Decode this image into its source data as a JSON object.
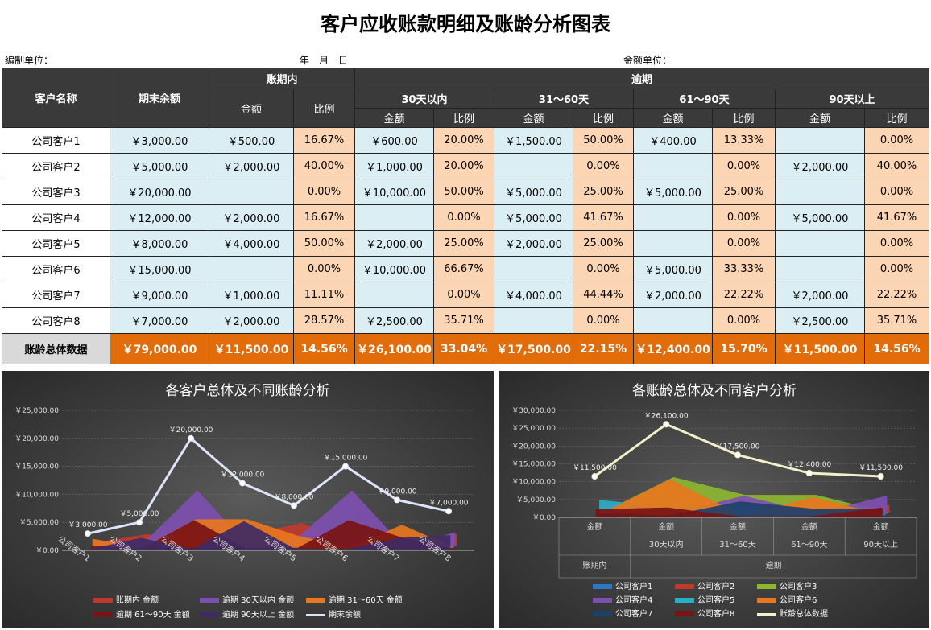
{
  "title": "客户应收账款明细及账龄分析图表",
  "meta": {
    "unit_label": "编制单位：",
    "date_label": "年　月　日",
    "amount_label": "金额单位："
  },
  "table": {
    "h_customer": "客户名称",
    "h_balance": "期末余额",
    "h_inperiod": "账期内",
    "h_overdue": "逾期",
    "h_amount": "金额",
    "h_ratio": "比例",
    "buckets": [
      "30天以内",
      "31～60天",
      "61～90天",
      "90天以上"
    ],
    "rows": [
      {
        "name": "公司客户1",
        "bal": "￥3,000.00",
        "c": [
          "￥500.00",
          "16.67%",
          "￥600.00",
          "20.00%",
          "￥1,500.00",
          "50.00%",
          "￥400.00",
          "13.33%",
          "",
          "0.00%"
        ]
      },
      {
        "name": "公司客户2",
        "bal": "￥5,000.00",
        "c": [
          "￥2,000.00",
          "40.00%",
          "￥1,000.00",
          "20.00%",
          "",
          "0.00%",
          "",
          "0.00%",
          "￥2,000.00",
          "40.00%"
        ]
      },
      {
        "name": "公司客户3",
        "bal": "￥20,000.00",
        "c": [
          "",
          "0.00%",
          "￥10,000.00",
          "50.00%",
          "￥5,000.00",
          "25.00%",
          "￥5,000.00",
          "25.00%",
          "",
          "0.00%"
        ]
      },
      {
        "name": "公司客户4",
        "bal": "￥12,000.00",
        "c": [
          "￥2,000.00",
          "16.67%",
          "",
          "0.00%",
          "￥5,000.00",
          "41.67%",
          "",
          "0.00%",
          "￥5,000.00",
          "41.67%"
        ]
      },
      {
        "name": "公司客户5",
        "bal": "￥8,000.00",
        "c": [
          "￥4,000.00",
          "50.00%",
          "￥2,000.00",
          "25.00%",
          "￥2,000.00",
          "25.00%",
          "",
          "0.00%",
          "",
          "0.00%"
        ]
      },
      {
        "name": "公司客户6",
        "bal": "￥15,000.00",
        "c": [
          "",
          "0.00%",
          "￥10,000.00",
          "66.67%",
          "",
          "0.00%",
          "￥5,000.00",
          "33.33%",
          "",
          "0.00%"
        ]
      },
      {
        "name": "公司客户7",
        "bal": "￥9,000.00",
        "c": [
          "￥1,000.00",
          "11.11%",
          "",
          "0.00%",
          "￥4,000.00",
          "44.44%",
          "￥2,000.00",
          "22.22%",
          "￥2,000.00",
          "22.22%"
        ]
      },
      {
        "name": "公司客户8",
        "bal": "￥7,000.00",
        "c": [
          "￥2,000.00",
          "28.57%",
          "￥2,500.00",
          "35.71%",
          "",
          "0.00%",
          "",
          "0.00%",
          "￥2,500.00",
          "35.71%"
        ]
      }
    ],
    "total": {
      "name": "账龄总体数据",
      "bal": "￥79,000.00",
      "c": [
        "￥11,500.00",
        "14.56%",
        "￥26,100.00",
        "33.04%",
        "￥17,500.00",
        "22.15%",
        "￥12,400.00",
        "15.70%",
        "￥11,500.00",
        "14.56%"
      ]
    }
  },
  "chart_data": [
    {
      "type": "area",
      "title": "各客户总体及不同账龄分析",
      "categories": [
        "公司客户1",
        "公司客户2",
        "公司客户3",
        "公司客户4",
        "公司客户5",
        "公司客户6",
        "公司客户7",
        "公司客户8"
      ],
      "ylim": [
        0,
        25000
      ],
      "yticks": [
        "￥0.00",
        "￥5,000.00",
        "￥10,000.00",
        "￥15,000.00",
        "￥20,000.00",
        "￥25,000.00"
      ],
      "series": [
        {
          "name": "账期内 金额",
          "values": [
            500,
            2000,
            0,
            2000,
            4000,
            0,
            1000,
            2000
          ],
          "color": "#c0392b"
        },
        {
          "name": "逾期 30天以内 金额",
          "values": [
            600,
            1000,
            10000,
            0,
            2000,
            10000,
            0,
            2500
          ],
          "color": "#7d4fb0"
        },
        {
          "name": "逾期 31～60天 金额",
          "values": [
            1500,
            0,
            5000,
            5000,
            2000,
            0,
            4000,
            0
          ],
          "color": "#e8761e"
        },
        {
          "name": "逾期 61～90天 金额",
          "values": [
            400,
            0,
            5000,
            0,
            0,
            5000,
            2000,
            0
          ],
          "color": "#7a1313"
        },
        {
          "name": "逾期 90天以上 金额",
          "values": [
            0,
            2000,
            0,
            5000,
            0,
            0,
            2000,
            2500
          ],
          "color": "#3f2a64"
        }
      ],
      "line": {
        "name": "期末余额",
        "values": [
          3000,
          5000,
          20000,
          12000,
          8000,
          15000,
          9000,
          7000
        ],
        "labels": [
          "￥3,000.00",
          "￥5,000.00",
          "￥20,000.00",
          "￥12,000.00",
          "￥8,000.00",
          "￥15,000.00",
          "￥9,000.00",
          "￥7,000.00"
        ],
        "color": "#dde4f7"
      }
    },
    {
      "type": "area",
      "title": "各账龄总体及不同客户分析",
      "categories": [
        "金额",
        "金额",
        "金额",
        "金额",
        "金额"
      ],
      "subcategories": [
        "",
        "30天以内",
        "31～60天",
        "61～90天",
        "90天以上"
      ],
      "groups": [
        "账期内",
        "逾期"
      ],
      "ylim": [
        0,
        30000
      ],
      "yticks": [
        "￥0.00",
        "￥5,000.00",
        "￥10,000.00",
        "￥15,000.00",
        "￥20,000.00",
        "￥25,000.00",
        "￥30,000.00"
      ],
      "series": [
        {
          "name": "公司客户1",
          "values": [
            500,
            600,
            1500,
            400,
            0
          ],
          "color": "#2e75c8"
        },
        {
          "name": "公司客户2",
          "values": [
            2000,
            1000,
            0,
            0,
            2000
          ],
          "color": "#c0392b"
        },
        {
          "name": "公司客户3",
          "values": [
            0,
            10000,
            5000,
            5000,
            0
          ],
          "color": "#8db531"
        },
        {
          "name": "公司客户4",
          "values": [
            2000,
            0,
            5000,
            0,
            5000
          ],
          "color": "#7d4fb0"
        },
        {
          "name": "公司客户5",
          "values": [
            4000,
            2000,
            2000,
            0,
            0
          ],
          "color": "#2aaec6"
        },
        {
          "name": "公司客户6",
          "values": [
            0,
            10000,
            0,
            5000,
            0
          ],
          "color": "#e8761e"
        },
        {
          "name": "公司客户7",
          "values": [
            1000,
            0,
            4000,
            2000,
            2000
          ],
          "color": "#1f3f6b"
        },
        {
          "name": "公司客户8",
          "values": [
            2000,
            2500,
            0,
            0,
            2500
          ],
          "color": "#7a1313"
        }
      ],
      "line": {
        "name": "账龄总体数据",
        "values": [
          11500,
          26100,
          17500,
          12400,
          11500
        ],
        "labels": [
          "￥11,500.00",
          "￥26,100.00",
          "￥17,500.00",
          "￥12,400.00",
          "￥11,500.00"
        ],
        "color": "#f2f0c8"
      }
    }
  ]
}
